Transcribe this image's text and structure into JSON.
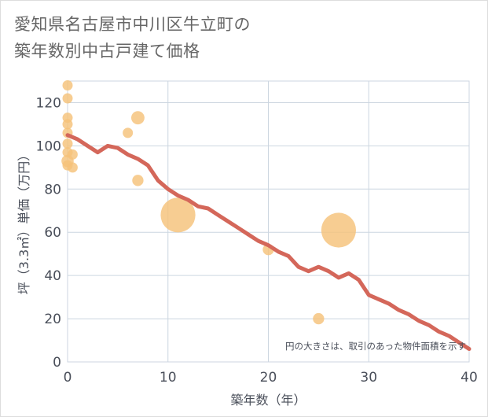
{
  "title": {
    "line1": "愛知県名古屋市中川区牛立町の",
    "line2": "築年数別中古戸建て価格"
  },
  "chart_data": {
    "type": "scatter",
    "title": "愛知県名古屋市中川区牛立町の築年数別中古戸建て価格",
    "xlabel": "築年数（年）",
    "ylabel": "坪（3.3㎡）単価（万円）",
    "xlim": [
      0,
      40
    ],
    "ylim": [
      0,
      130
    ],
    "xticks": [
      0,
      10,
      20,
      30,
      40
    ],
    "yticks": [
      0,
      20,
      40,
      60,
      80,
      100,
      120
    ],
    "grid": true,
    "note": "円の大きさは、取引のあった物件面積を示す",
    "colors": {
      "points": "#f5c27a",
      "trend": "#d4675a",
      "grid": "#ccd6e0"
    },
    "points": [
      {
        "x": 0,
        "y": 128,
        "size": 1
      },
      {
        "x": 0,
        "y": 122,
        "size": 1
      },
      {
        "x": 0,
        "y": 113,
        "size": 1
      },
      {
        "x": 0,
        "y": 110,
        "size": 1
      },
      {
        "x": 0,
        "y": 106,
        "size": 1
      },
      {
        "x": 0,
        "y": 101,
        "size": 1
      },
      {
        "x": 0,
        "y": 97,
        "size": 1
      },
      {
        "x": 0,
        "y": 93,
        "size": 1.2
      },
      {
        "x": 0,
        "y": 91,
        "size": 1
      },
      {
        "x": 0.5,
        "y": 96,
        "size": 1
      },
      {
        "x": 0.5,
        "y": 90,
        "size": 1
      },
      {
        "x": 6,
        "y": 106,
        "size": 1
      },
      {
        "x": 7,
        "y": 113,
        "size": 1.3
      },
      {
        "x": 7,
        "y": 84,
        "size": 1.1
      },
      {
        "x": 11,
        "y": 68,
        "size": 3.4
      },
      {
        "x": 20,
        "y": 52,
        "size": 1.1
      },
      {
        "x": 25,
        "y": 20,
        "size": 1.1
      },
      {
        "x": 27,
        "y": 61,
        "size": 3.4
      }
    ],
    "trend": {
      "name": "trend",
      "x": [
        0,
        1,
        2,
        3,
        4,
        5,
        6,
        7,
        8,
        9,
        10,
        11,
        12,
        13,
        14,
        15,
        16,
        17,
        18,
        19,
        20,
        21,
        22,
        23,
        24,
        25,
        26,
        27,
        28,
        29,
        30,
        31,
        32,
        33,
        34,
        35,
        36,
        37,
        38,
        39,
        40
      ],
      "y": [
        105,
        103,
        100,
        97,
        100,
        99,
        96,
        94,
        91,
        84,
        80,
        77,
        75,
        72,
        71,
        68,
        65,
        62,
        59,
        56,
        54,
        51,
        49,
        44,
        42,
        44,
        42,
        39,
        41,
        38,
        31,
        29,
        27,
        24,
        22,
        19,
        17,
        14,
        12,
        9,
        6
      ]
    }
  }
}
